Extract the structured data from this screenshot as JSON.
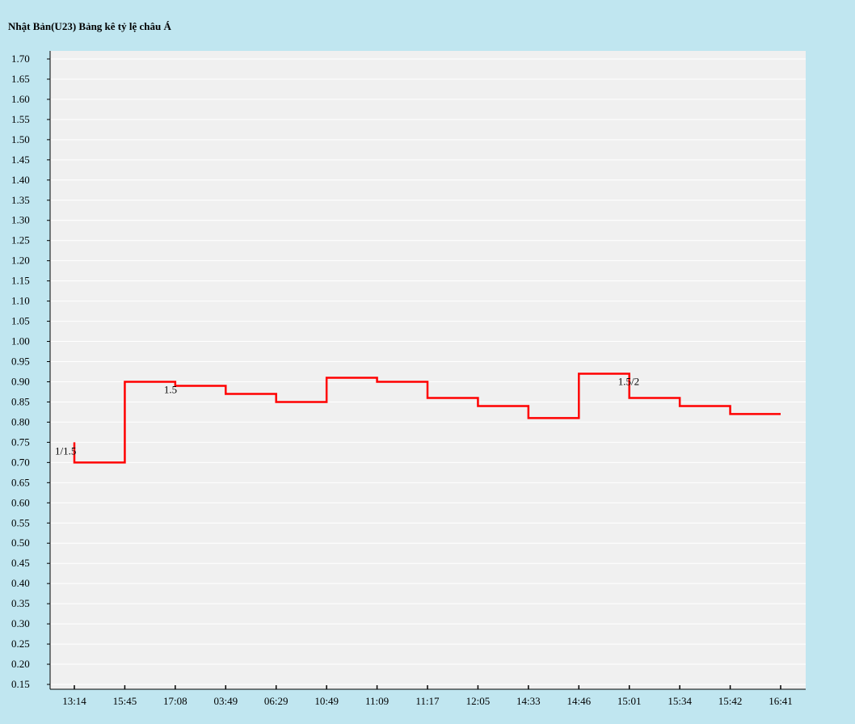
{
  "chart_data": {
    "type": "line",
    "title": "Nhật Bản(U23) Bảng kê tỷ lệ châu Á",
    "xlabel": "",
    "ylabel": "",
    "ylim": [
      0.15,
      1.7
    ],
    "y_ticks": [
      "0.15",
      "0.20",
      "0.25",
      "0.30",
      "0.35",
      "0.40",
      "0.45",
      "0.50",
      "0.55",
      "0.60",
      "0.65",
      "0.70",
      "0.75",
      "0.80",
      "0.85",
      "0.90",
      "0.95",
      "1.00",
      "1.05",
      "1.10",
      "1.15",
      "1.20",
      "1.25",
      "1.30",
      "1.35",
      "1.40",
      "1.45",
      "1.50",
      "1.55",
      "1.60",
      "1.65",
      "1.70"
    ],
    "categories": [
      "13:14",
      "15:45",
      "17:08",
      "03:49",
      "06:29",
      "10:49",
      "11:09",
      "11:17",
      "12:05",
      "14:33",
      "14:46",
      "15:01",
      "15:34",
      "15:42",
      "16:41"
    ],
    "step": true,
    "start_value": 0.75,
    "series": [
      {
        "color": "#ff0000",
        "values": [
          0.7,
          0.9,
          0.89,
          0.87,
          0.85,
          0.91,
          0.9,
          0.86,
          0.84,
          0.81,
          0.92,
          0.86,
          0.84,
          0.82,
          0.82
        ]
      }
    ],
    "annotations": [
      {
        "text": "1/1.5",
        "category": "13:14"
      },
      {
        "text": "1.5",
        "category": "17:08"
      },
      {
        "text": "1.5/2",
        "category": "15:01"
      }
    ],
    "plot_background": "#f0f0f0",
    "page_background": "#c0e6f0",
    "grid": true
  }
}
